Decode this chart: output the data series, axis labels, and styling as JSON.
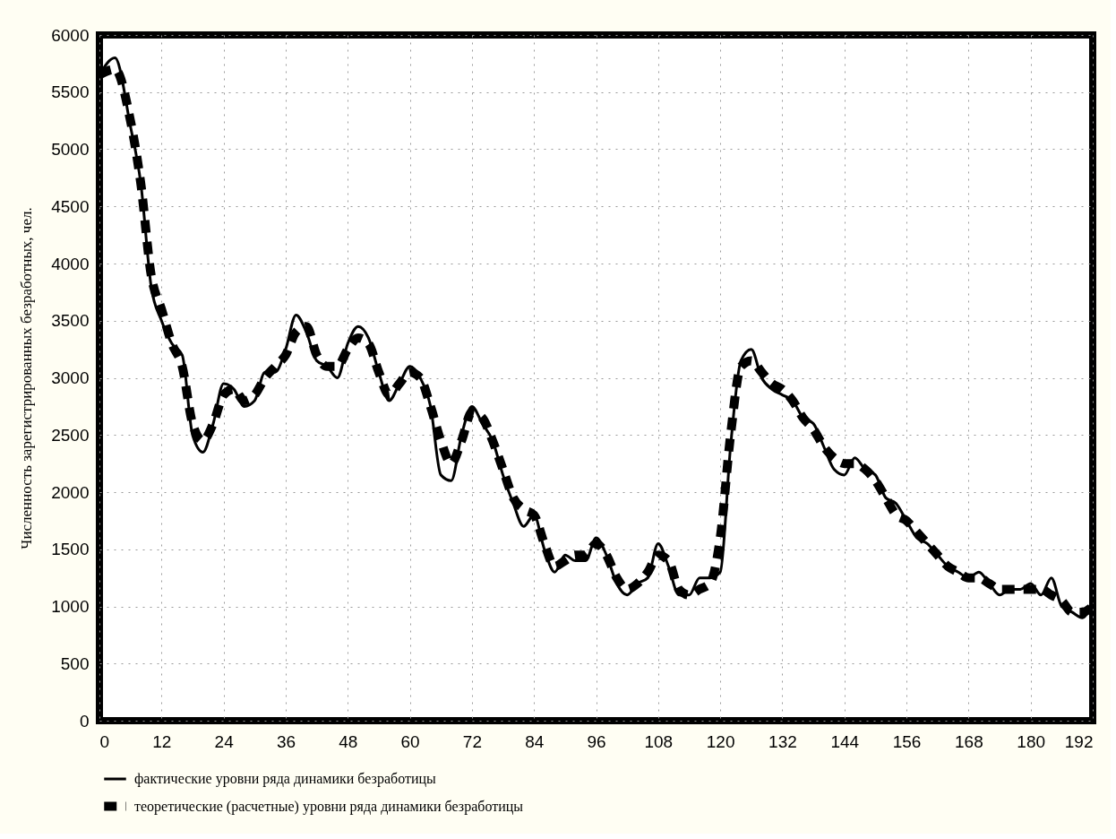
{
  "chart_data": {
    "type": "line",
    "ylabel": "Численность зарегистрированных безработных, чел.",
    "x": [
      0,
      3,
      6,
      8,
      10,
      12,
      14,
      16,
      18,
      20,
      22,
      24,
      26,
      28,
      30,
      32,
      34,
      36,
      38,
      40,
      42,
      44,
      46,
      48,
      50,
      52,
      54,
      56,
      58,
      60,
      62,
      64,
      66,
      68,
      70,
      72,
      74,
      76,
      78,
      80,
      82,
      84,
      86,
      88,
      90,
      92,
      94,
      96,
      98,
      100,
      102,
      104,
      106,
      108,
      110,
      112,
      114,
      116,
      118,
      120,
      122,
      124,
      126,
      128,
      130,
      132,
      134,
      136,
      138,
      140,
      142,
      144,
      146,
      148,
      150,
      152,
      154,
      156,
      158,
      160,
      162,
      164,
      166,
      168,
      170,
      172,
      174,
      176,
      178,
      180,
      182,
      184,
      186,
      188,
      190,
      192
    ],
    "series": [
      {
        "name": "фактические уровни ряда динамики безработицы",
        "color": "#000000",
        "line_style": "solid",
        "values": [
          5650,
          5800,
          5200,
          4700,
          3800,
          3500,
          3300,
          3200,
          2500,
          2350,
          2600,
          2950,
          2900,
          2750,
          2800,
          3050,
          3050,
          3250,
          3550,
          3400,
          3150,
          3100,
          3000,
          3300,
          3450,
          3350,
          3050,
          2800,
          2950,
          3100,
          3000,
          2750,
          2150,
          2100,
          2500,
          2750,
          2600,
          2450,
          2150,
          1900,
          1700,
          1800,
          1500,
          1300,
          1450,
          1400,
          1400,
          1600,
          1450,
          1200,
          1100,
          1200,
          1250,
          1550,
          1350,
          1100,
          1100,
          1250,
          1250,
          1300,
          2400,
          3150,
          3250,
          3000,
          2900,
          2850,
          2800,
          2650,
          2600,
          2400,
          2200,
          2150,
          2300,
          2200,
          2150,
          1950,
          1900,
          1750,
          1600,
          1550,
          1450,
          1350,
          1300,
          1250,
          1300,
          1200,
          1100,
          1150,
          1150,
          1200,
          1100,
          1250,
          1000,
          950,
          900,
          1050
        ]
      },
      {
        "name": "теоретические (расчетные) уровни ряда динамики безработицы",
        "color": "#000000",
        "line_style": "dashed",
        "values": [
          5650,
          5700,
          5250,
          4700,
          3900,
          3600,
          3300,
          3100,
          2600,
          2450,
          2600,
          2850,
          2900,
          2800,
          2850,
          3000,
          3100,
          3200,
          3400,
          3450,
          3200,
          3100,
          3100,
          3250,
          3350,
          3300,
          3050,
          2850,
          2950,
          3050,
          3000,
          2750,
          2450,
          2250,
          2450,
          2700,
          2650,
          2450,
          2200,
          1950,
          1850,
          1800,
          1550,
          1350,
          1400,
          1450,
          1450,
          1550,
          1450,
          1250,
          1150,
          1200,
          1300,
          1450,
          1400,
          1150,
          1100,
          1150,
          1200,
          1600,
          2500,
          3100,
          3150,
          3050,
          2950,
          2900,
          2800,
          2650,
          2550,
          2400,
          2300,
          2250,
          2250,
          2200,
          2100,
          1950,
          1800,
          1750,
          1650,
          1550,
          1450,
          1350,
          1300,
          1250,
          1250,
          1200,
          1150,
          1150,
          1150,
          1150,
          1150,
          1100,
          1050,
          950,
          950,
          1000
        ]
      }
    ],
    "xlim": [
      0,
      192
    ],
    "xticks": [
      0,
      12,
      24,
      36,
      48,
      60,
      72,
      84,
      96,
      108,
      120,
      132,
      144,
      156,
      168,
      180,
      192
    ],
    "ylim": [
      0,
      6000
    ],
    "yticks": [
      0,
      500,
      1000,
      1500,
      2000,
      2500,
      3000,
      3500,
      4000,
      4500,
      5000,
      5500,
      6000
    ],
    "grid": true,
    "legend": "bottom"
  }
}
